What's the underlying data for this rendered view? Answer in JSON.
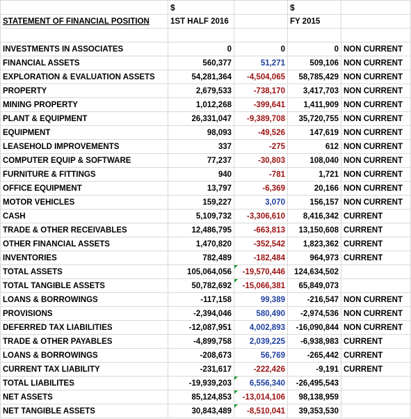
{
  "header": {
    "currency_a": "$",
    "currency_b": "$",
    "title": "STATEMENT OF FINANCIAL POSITION",
    "period_a": "1ST HALF 2016",
    "period_b": "FY 2015"
  },
  "rows": [
    {
      "label": "INVESTMENTS IN ASSOCIATES",
      "h1": "0",
      "chg": "0",
      "fy": "0",
      "cls": "NON CURRENT",
      "chg_color": "black"
    },
    {
      "label": "FINANCIAL ASSETS",
      "h1": "560,377",
      "chg": "51,271",
      "fy": "509,106",
      "cls": "NON CURRENT",
      "chg_color": "blue"
    },
    {
      "label": "EXPLORATION & EVALUATION ASSETS",
      "h1": "54,281,364",
      "chg": "-4,504,065",
      "fy": "58,785,429",
      "cls": "NON CURRENT",
      "chg_color": "red"
    },
    {
      "label": "PROPERTY",
      "h1": "2,679,533",
      "chg": "-738,170",
      "fy": "3,417,703",
      "cls": "NON CURRENT",
      "chg_color": "red"
    },
    {
      "label": "MINING PROPERTY",
      "h1": "1,012,268",
      "chg": "-399,641",
      "fy": "1,411,909",
      "cls": "NON CURRENT",
      "chg_color": "red"
    },
    {
      "label": "PLANT & EQUIPMENT",
      "h1": "26,331,047",
      "chg": "-9,389,708",
      "fy": "35,720,755",
      "cls": "NON CURRENT",
      "chg_color": "red"
    },
    {
      "label": "EQUIPMENT",
      "h1": "98,093",
      "chg": "-49,526",
      "fy": "147,619",
      "cls": "NON CURRENT",
      "chg_color": "red"
    },
    {
      "label": "LEASEHOLD IMPROVEMENTS",
      "h1": "337",
      "chg": "-275",
      "fy": "612",
      "cls": "NON CURRENT",
      "chg_color": "red"
    },
    {
      "label": "COMPUTER EQUIP & SOFTWARE",
      "h1": "77,237",
      "chg": "-30,803",
      "fy": "108,040",
      "cls": "NON CURRENT",
      "chg_color": "red"
    },
    {
      "label": "FURNITURE & FITTINGS",
      "h1": "940",
      "chg": "-781",
      "fy": "1,721",
      "cls": "NON CURRENT",
      "chg_color": "red"
    },
    {
      "label": "OFFICE EQUIPMENT",
      "h1": "13,797",
      "chg": "-6,369",
      "fy": "20,166",
      "cls": "NON CURRENT",
      "chg_color": "red"
    },
    {
      "label": "MOTOR VEHICLES",
      "h1": "159,227",
      "chg": "3,070",
      "fy": "156,157",
      "cls": "NON CURRENT",
      "chg_color": "blue"
    },
    {
      "label": "CASH",
      "h1": "5,109,732",
      "chg": "-3,306,610",
      "fy": "8,416,342",
      "cls": "CURRENT",
      "chg_color": "red"
    },
    {
      "label": "TRADE & OTHER RECEIVABLES",
      "h1": "12,486,795",
      "chg": "-663,813",
      "fy": "13,150,608",
      "cls": "CURRENT",
      "chg_color": "red"
    },
    {
      "label": "OTHER FINANCIAL ASSETS",
      "h1": "1,470,820",
      "chg": "-352,542",
      "fy": "1,823,362",
      "cls": "CURRENT",
      "chg_color": "red"
    },
    {
      "label": "INVENTORIES",
      "h1": "782,489",
      "chg": "-182,484",
      "fy": "964,973",
      "cls": "CURRENT",
      "chg_color": "red"
    },
    {
      "label": "TOTAL ASSETS",
      "h1": "105,064,056",
      "chg": "-19,570,446",
      "fy": "124,634,502",
      "cls": "",
      "chg_color": "red",
      "flag": true
    },
    {
      "label": "TOTAL TANGIBLE ASSETS",
      "h1": "50,782,692",
      "chg": "-15,066,381",
      "fy": "65,849,073",
      "cls": "",
      "chg_color": "red",
      "flag": true
    },
    {
      "label": "LOANS & BORROWINGS",
      "h1": "-117,158",
      "chg": "99,389",
      "fy": "-216,547",
      "cls": "NON CURRENT",
      "chg_color": "blue"
    },
    {
      "label": "PROVISIONS",
      "h1": "-2,394,046",
      "chg": "580,490",
      "fy": "-2,974,536",
      "cls": "NON CURRENT",
      "chg_color": "blue"
    },
    {
      "label": "DEFERRED TAX LIABILITIES",
      "h1": "-12,087,951",
      "chg": "4,002,893",
      "fy": "-16,090,844",
      "cls": "NON CURRENT",
      "chg_color": "blue"
    },
    {
      "label": "TRADE & OTHER PAYABLES",
      "h1": "-4,899,758",
      "chg": "2,039,225",
      "fy": "-6,938,983",
      "cls": "CURRENT",
      "chg_color": "blue"
    },
    {
      "label": "LOANS & BORROWINGS",
      "h1": "-208,673",
      "chg": "56,769",
      "fy": "-265,442",
      "cls": "CURRENT",
      "chg_color": "blue"
    },
    {
      "label": "CURRENT TAX LIABILITY",
      "h1": "-231,617",
      "chg": "-222,426",
      "fy": "-9,191",
      "cls": "CURRENT",
      "chg_color": "red"
    },
    {
      "label": "TOTAL LIABILITES",
      "h1": "-19,939,203",
      "chg": "6,556,340",
      "fy": "-26,495,543",
      "cls": "",
      "chg_color": "blue",
      "flag": true
    },
    {
      "label": "NET ASSETS",
      "h1": "85,124,853",
      "chg": "-13,014,106",
      "fy": "98,138,959",
      "cls": "",
      "chg_color": "red",
      "flag": true
    },
    {
      "label": "NET TANGIBLE ASSETS",
      "h1": "30,843,489",
      "chg": "-8,510,041",
      "fy": "39,353,530",
      "cls": "",
      "chg_color": "red",
      "flag": true
    }
  ]
}
